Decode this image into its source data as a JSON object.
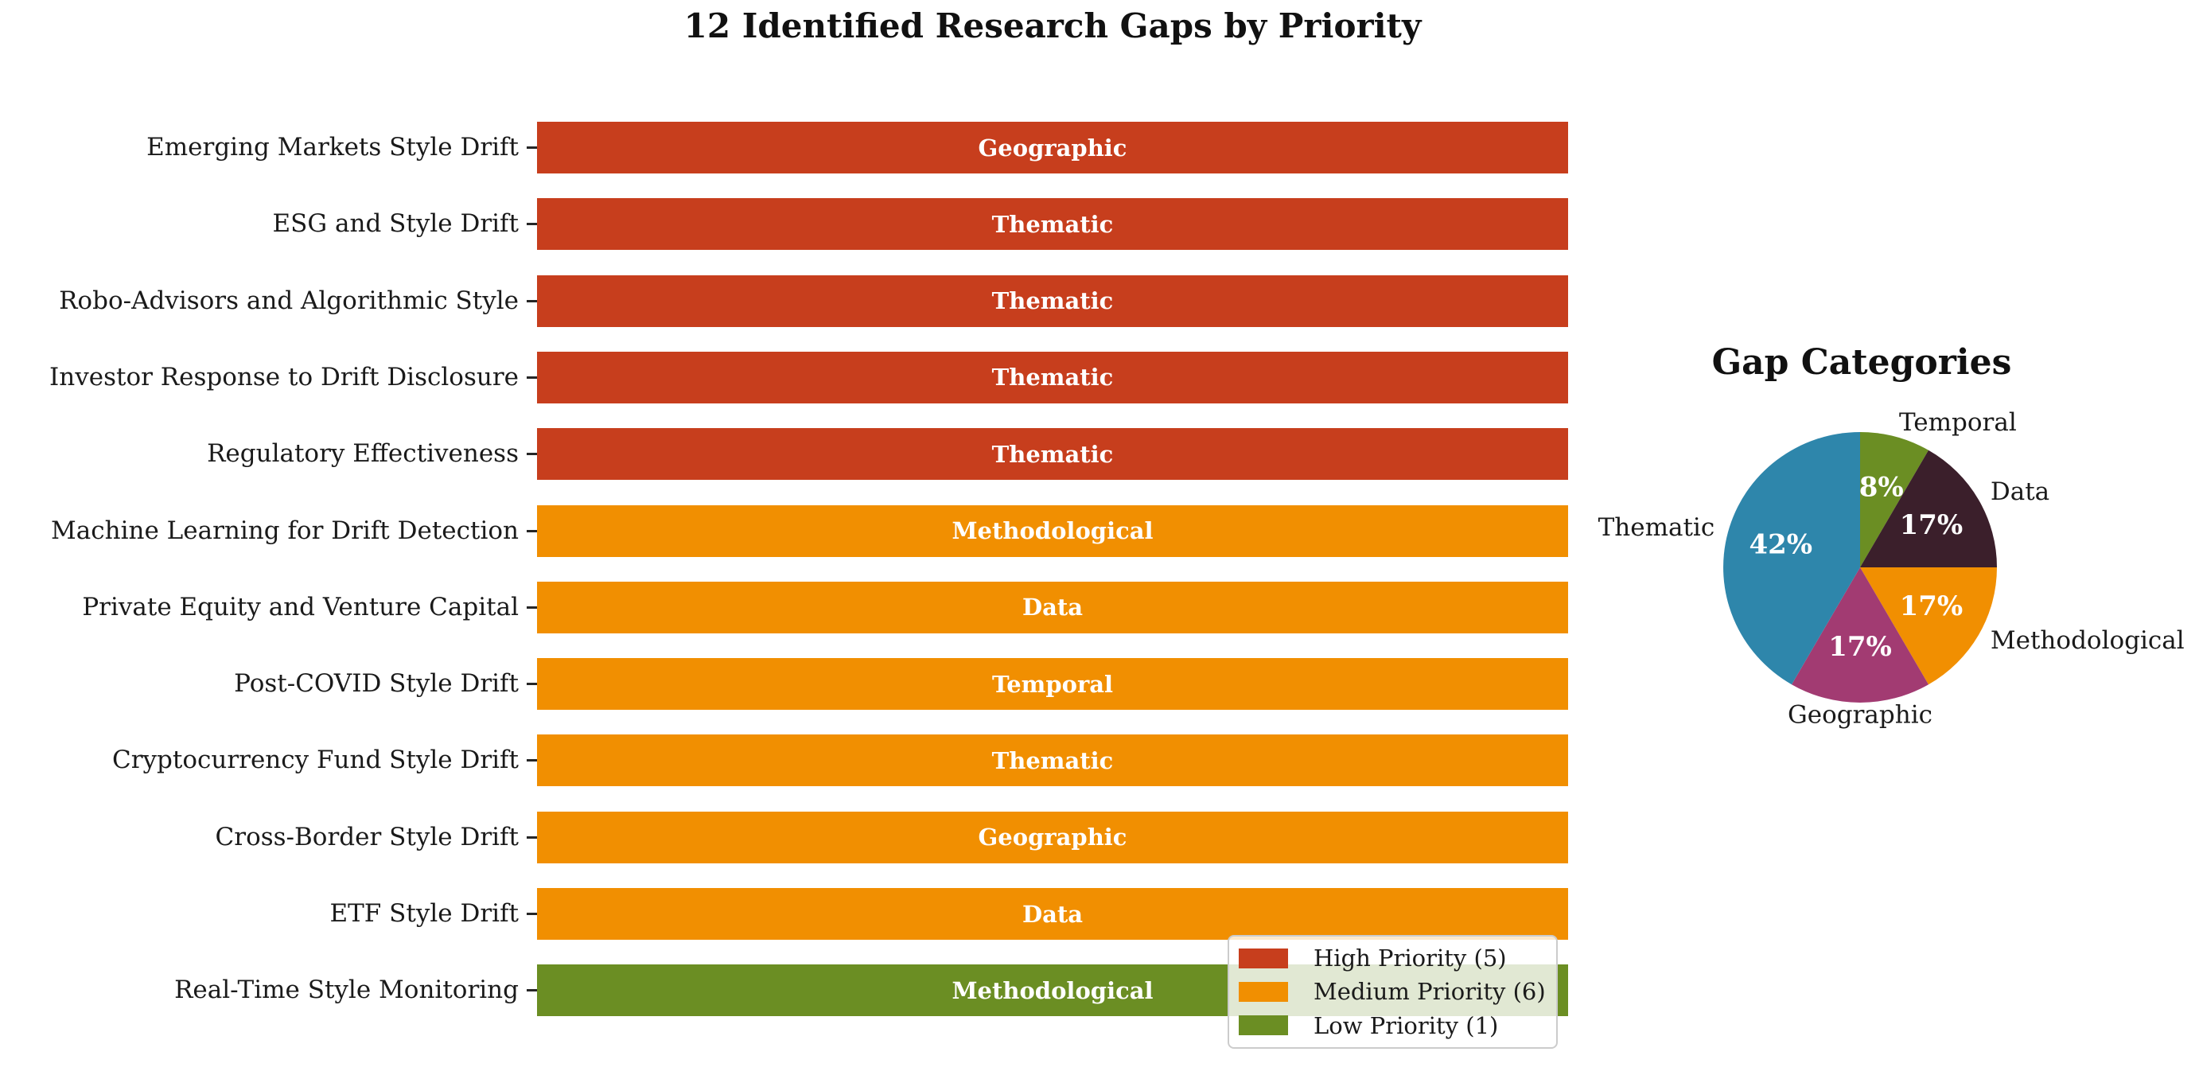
{
  "title": "12 Identified Research Gaps by Priority",
  "colors": {
    "high": "#C73E1D",
    "medium": "#F18F01",
    "low": "#6B8E23",
    "thematic_blue": "#2E86AB",
    "geographic_magenta": "#A23B72",
    "data_dark": "#3B1F2B"
  },
  "bar_chart": {
    "rows": [
      {
        "label": "Emerging Markets Style Drift",
        "category": "Geographic",
        "priority": "high"
      },
      {
        "label": "ESG and Style Drift",
        "category": "Thematic",
        "priority": "high"
      },
      {
        "label": "Robo-Advisors and Algorithmic Style",
        "category": "Thematic",
        "priority": "high"
      },
      {
        "label": "Investor Response to Drift Disclosure",
        "category": "Thematic",
        "priority": "high"
      },
      {
        "label": "Regulatory Effectiveness",
        "category": "Thematic",
        "priority": "high"
      },
      {
        "label": "Machine Learning for Drift Detection",
        "category": "Methodological",
        "priority": "medium"
      },
      {
        "label": "Private Equity and Venture Capital",
        "category": "Data",
        "priority": "medium"
      },
      {
        "label": "Post-COVID Style Drift",
        "category": "Temporal",
        "priority": "medium"
      },
      {
        "label": "Cryptocurrency Fund Style Drift",
        "category": "Thematic",
        "priority": "medium"
      },
      {
        "label": "Cross-Border Style Drift",
        "category": "Geographic",
        "priority": "medium"
      },
      {
        "label": "ETF Style Drift",
        "category": "Data",
        "priority": "medium"
      },
      {
        "label": "Real-Time Style Monitoring",
        "category": "Methodological",
        "priority": "low"
      }
    ]
  },
  "legend": {
    "items": [
      {
        "label": "High Priority (5)",
        "color": "#C73E1D"
      },
      {
        "label": "Medium Priority (6)",
        "color": "#F18F01"
      },
      {
        "label": "Low Priority (1)",
        "color": "#6B8E23"
      }
    ]
  },
  "pie": {
    "title": "Gap Categories",
    "slices": [
      {
        "label": "Temporal",
        "pct_label": "8%",
        "fraction": 0.08333,
        "color": "#6B8E23"
      },
      {
        "label": "Data",
        "pct_label": "17%",
        "fraction": 0.16667,
        "color": "#3B1F2B"
      },
      {
        "label": "Methodological",
        "pct_label": "17%",
        "fraction": 0.16667,
        "color": "#F18F01"
      },
      {
        "label": "Geographic",
        "pct_label": "17%",
        "fraction": 0.16667,
        "color": "#A23B72"
      },
      {
        "label": "Thematic",
        "pct_label": "42%",
        "fraction": 0.41667,
        "color": "#2E86AB"
      }
    ]
  },
  "chart_data": [
    {
      "type": "bar",
      "orientation": "horizontal",
      "title": "12 Identified Research Gaps by Priority",
      "categories": [
        "Emerging Markets Style Drift",
        "ESG and Style Drift",
        "Robo-Advisors and Algorithmic Style",
        "Investor Response to Drift Disclosure",
        "Regulatory Effectiveness",
        "Machine Learning for Drift Detection",
        "Private Equity and Venture Capital",
        "Post-COVID Style Drift",
        "Cryptocurrency Fund Style Drift",
        "Cross-Border Style Drift",
        "ETF Style Drift",
        "Real-Time Style Monitoring"
      ],
      "values": [
        1,
        1,
        1,
        1,
        1,
        1,
        1,
        1,
        1,
        1,
        1,
        1
      ],
      "bar_text": [
        "Geographic",
        "Thematic",
        "Thematic",
        "Thematic",
        "Thematic",
        "Methodological",
        "Data",
        "Temporal",
        "Thematic",
        "Geographic",
        "Data",
        "Methodological"
      ],
      "bar_priorities": [
        "high",
        "high",
        "high",
        "high",
        "high",
        "medium",
        "medium",
        "medium",
        "medium",
        "medium",
        "medium",
        "low"
      ],
      "legend_entries": [
        "High Priority (5)",
        "Medium Priority (6)",
        "Low Priority (1)"
      ],
      "legend_position": "lower right",
      "xlabel": "",
      "ylabel": "",
      "grid": false,
      "x_axis_shown": false
    },
    {
      "type": "pie",
      "title": "Gap Categories",
      "labels": [
        "Temporal",
        "Data",
        "Methodological",
        "Geographic",
        "Thematic"
      ],
      "values": [
        1,
        2,
        2,
        2,
        5
      ],
      "pct_labels": [
        "8%",
        "17%",
        "17%",
        "17%",
        "42%"
      ],
      "colors": [
        "#6B8E23",
        "#3B1F2B",
        "#F18F01",
        "#A23B72",
        "#2E86AB"
      ],
      "start_angle": 90,
      "direction": "clockwise",
      "label_distance": 1.1,
      "pct_distance": 0.6
    }
  ]
}
